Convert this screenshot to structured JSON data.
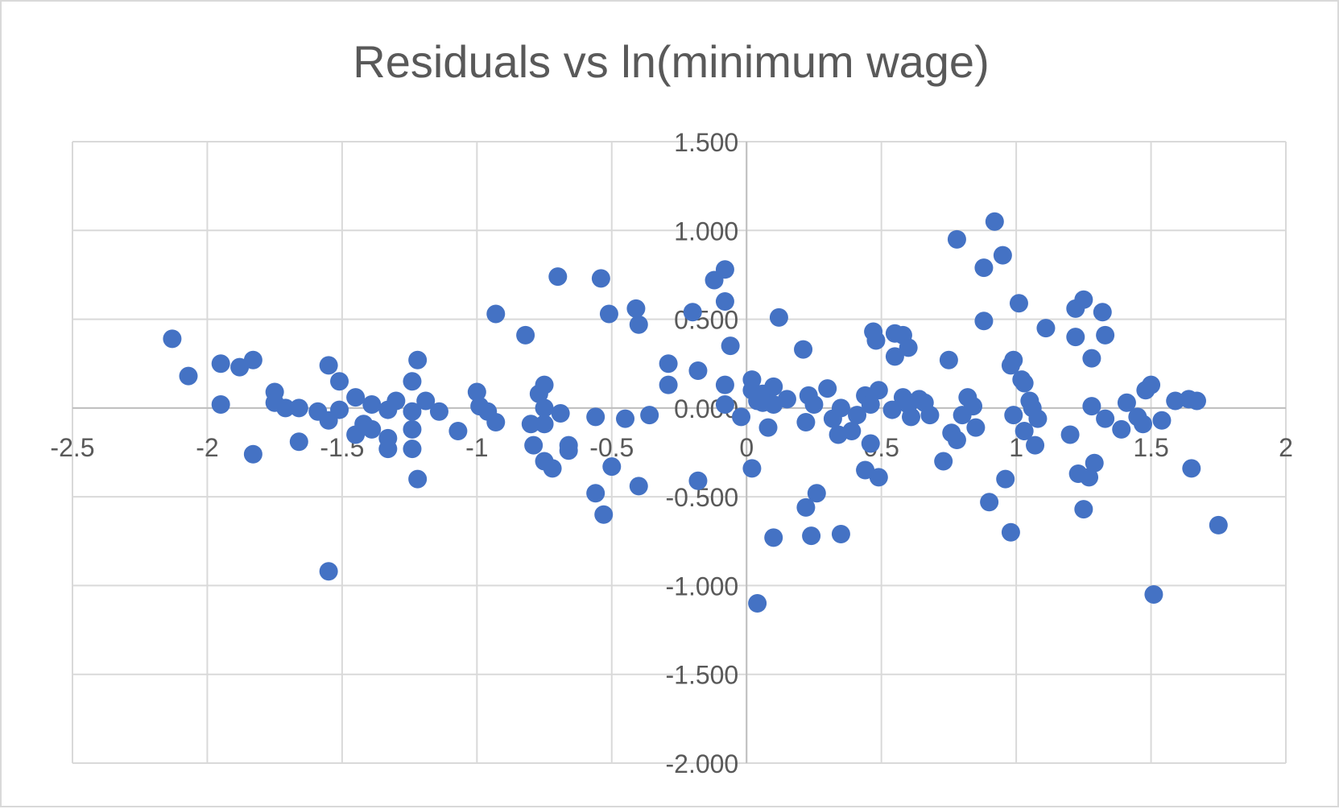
{
  "chart_data": {
    "type": "scatter",
    "title": "Residuals vs ln(minimum wage)",
    "xlabel": "",
    "ylabel": "",
    "xlim": [
      -2.5,
      2
    ],
    "ylim": [
      -2,
      1.5
    ],
    "xticks": [
      "-2.5",
      "-2",
      "-1.5",
      "-1",
      "-0.5",
      "0",
      "0.5",
      "1",
      "1.5",
      "2"
    ],
    "yticks": [
      "-2.000",
      "-1.500",
      "-1.000",
      "-0.500",
      "0.000",
      "0.500",
      "1.000",
      "1.500"
    ],
    "grid": true,
    "legend": "none",
    "marker_color": "#4472c4",
    "points": [
      [
        -2.13,
        0.39
      ],
      [
        -2.07,
        0.18
      ],
      [
        -1.95,
        0.25
      ],
      [
        -1.95,
        0.02
      ],
      [
        -1.88,
        0.23
      ],
      [
        -1.83,
        0.27
      ],
      [
        -1.83,
        -0.26
      ],
      [
        -1.75,
        0.09
      ],
      [
        -1.75,
        0.03
      ],
      [
        -1.71,
        0.0
      ],
      [
        -1.66,
        0.0
      ],
      [
        -1.66,
        -0.19
      ],
      [
        -1.59,
        -0.02
      ],
      [
        -1.55,
        0.24
      ],
      [
        -1.55,
        -0.07
      ],
      [
        -1.55,
        -0.92
      ],
      [
        -1.51,
        0.15
      ],
      [
        -1.51,
        -0.01
      ],
      [
        -1.45,
        0.06
      ],
      [
        -1.45,
        -0.15
      ],
      [
        -1.42,
        -0.09
      ],
      [
        -1.39,
        0.02
      ],
      [
        -1.39,
        -0.12
      ],
      [
        -1.33,
        -0.01
      ],
      [
        -1.33,
        -0.17
      ],
      [
        -1.33,
        -0.23
      ],
      [
        -1.3,
        0.04
      ],
      [
        -1.24,
        0.15
      ],
      [
        -1.24,
        -0.02
      ],
      [
        -1.24,
        -0.12
      ],
      [
        -1.24,
        -0.23
      ],
      [
        -1.22,
        0.27
      ],
      [
        -1.22,
        -0.4
      ],
      [
        -1.19,
        0.04
      ],
      [
        -1.14,
        -0.02
      ],
      [
        -1.07,
        -0.13
      ],
      [
        -1.0,
        0.09
      ],
      [
        -0.99,
        0.01
      ],
      [
        -0.96,
        -0.02
      ],
      [
        -0.93,
        0.53
      ],
      [
        -0.93,
        -0.08
      ],
      [
        -0.82,
        0.41
      ],
      [
        -0.8,
        -0.09
      ],
      [
        -0.79,
        -0.21
      ],
      [
        -0.77,
        0.08
      ],
      [
        -0.75,
        0.13
      ],
      [
        -0.75,
        0.0
      ],
      [
        -0.75,
        -0.09
      ],
      [
        -0.75,
        -0.3
      ],
      [
        -0.72,
        -0.34
      ],
      [
        -0.7,
        0.74
      ],
      [
        -0.69,
        -0.03
      ],
      [
        -0.66,
        -0.21
      ],
      [
        -0.66,
        -0.24
      ],
      [
        -0.56,
        -0.05
      ],
      [
        -0.56,
        -0.48
      ],
      [
        -0.54,
        0.73
      ],
      [
        -0.53,
        -0.6
      ],
      [
        -0.51,
        0.53
      ],
      [
        -0.5,
        -0.33
      ],
      [
        -0.45,
        -0.06
      ],
      [
        -0.41,
        0.56
      ],
      [
        -0.4,
        0.47
      ],
      [
        -0.4,
        -0.44
      ],
      [
        -0.36,
        -0.04
      ],
      [
        -0.29,
        0.25
      ],
      [
        -0.29,
        0.13
      ],
      [
        -0.2,
        0.54
      ],
      [
        -0.18,
        0.21
      ],
      [
        -0.18,
        -0.41
      ],
      [
        -0.12,
        0.72
      ],
      [
        -0.08,
        0.78
      ],
      [
        -0.08,
        0.6
      ],
      [
        -0.06,
        0.35
      ],
      [
        -0.08,
        0.13
      ],
      [
        -0.08,
        0.02
      ],
      [
        -0.02,
        -0.05
      ],
      [
        0.02,
        0.16
      ],
      [
        0.02,
        0.1
      ],
      [
        0.02,
        -0.34
      ],
      [
        0.04,
        0.04
      ],
      [
        0.04,
        -1.1
      ],
      [
        0.06,
        0.08
      ],
      [
        0.06,
        0.03
      ],
      [
        0.08,
        -0.11
      ],
      [
        0.1,
        0.12
      ],
      [
        0.1,
        0.02
      ],
      [
        0.12,
        0.51
      ],
      [
        0.1,
        -0.73
      ],
      [
        0.15,
        0.05
      ],
      [
        0.21,
        0.33
      ],
      [
        0.22,
        -0.08
      ],
      [
        0.22,
        -0.56
      ],
      [
        0.23,
        0.07
      ],
      [
        0.24,
        -0.72
      ],
      [
        0.25,
        0.02
      ],
      [
        0.26,
        -0.48
      ],
      [
        0.3,
        0.11
      ],
      [
        0.32,
        -0.06
      ],
      [
        0.34,
        -0.15
      ],
      [
        0.35,
        0.0
      ],
      [
        0.35,
        -0.71
      ],
      [
        0.39,
        -0.13
      ],
      [
        0.41,
        -0.04
      ],
      [
        0.44,
        0.07
      ],
      [
        0.44,
        -0.35
      ],
      [
        0.46,
        0.02
      ],
      [
        0.46,
        -0.2
      ],
      [
        0.47,
        0.43
      ],
      [
        0.48,
        0.38
      ],
      [
        0.49,
        0.1
      ],
      [
        0.49,
        -0.39
      ],
      [
        0.54,
        -0.01
      ],
      [
        0.55,
        0.29
      ],
      [
        0.55,
        0.42
      ],
      [
        0.58,
        0.41
      ],
      [
        0.58,
        0.06
      ],
      [
        0.6,
        0.34
      ],
      [
        0.6,
        0.02
      ],
      [
        0.61,
        -0.05
      ],
      [
        0.64,
        0.05
      ],
      [
        0.66,
        0.03
      ],
      [
        0.68,
        -0.04
      ],
      [
        0.73,
        -0.3
      ],
      [
        0.75,
        0.27
      ],
      [
        0.76,
        -0.14
      ],
      [
        0.78,
        0.95
      ],
      [
        0.78,
        -0.18
      ],
      [
        0.8,
        -0.04
      ],
      [
        0.82,
        0.06
      ],
      [
        0.84,
        0.01
      ],
      [
        0.85,
        -0.11
      ],
      [
        0.88,
        0.49
      ],
      [
        0.88,
        0.79
      ],
      [
        0.9,
        -0.53
      ],
      [
        0.92,
        1.05
      ],
      [
        0.95,
        0.86
      ],
      [
        0.96,
        -0.4
      ],
      [
        0.98,
        0.24
      ],
      [
        0.99,
        0.27
      ],
      [
        0.99,
        -0.04
      ],
      [
        0.98,
        -0.7
      ],
      [
        1.01,
        0.59
      ],
      [
        1.02,
        0.16
      ],
      [
        1.03,
        0.14
      ],
      [
        1.03,
        -0.13
      ],
      [
        1.05,
        0.04
      ],
      [
        1.06,
        0.0
      ],
      [
        1.07,
        -0.21
      ],
      [
        1.08,
        -0.06
      ],
      [
        1.11,
        0.45
      ],
      [
        1.2,
        -0.15
      ],
      [
        1.22,
        0.56
      ],
      [
        1.22,
        0.4
      ],
      [
        1.23,
        -0.37
      ],
      [
        1.25,
        0.61
      ],
      [
        1.25,
        -0.57
      ],
      [
        1.27,
        -0.39
      ],
      [
        1.28,
        0.28
      ],
      [
        1.28,
        0.01
      ],
      [
        1.29,
        -0.31
      ],
      [
        1.32,
        0.54
      ],
      [
        1.33,
        0.41
      ],
      [
        1.33,
        -0.06
      ],
      [
        1.39,
        -0.12
      ],
      [
        1.41,
        0.03
      ],
      [
        1.45,
        -0.05
      ],
      [
        1.47,
        -0.09
      ],
      [
        1.48,
        0.1
      ],
      [
        1.5,
        0.13
      ],
      [
        1.51,
        -1.05
      ],
      [
        1.54,
        -0.07
      ],
      [
        1.59,
        0.04
      ],
      [
        1.64,
        0.05
      ],
      [
        1.65,
        -0.34
      ],
      [
        1.67,
        0.04
      ],
      [
        1.75,
        -0.66
      ]
    ]
  }
}
